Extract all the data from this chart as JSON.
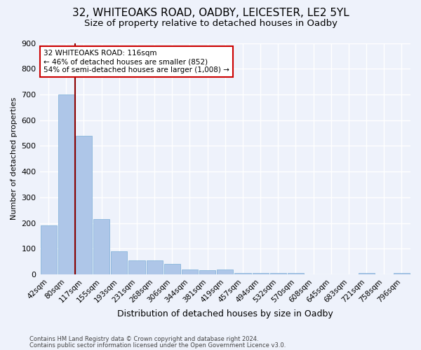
{
  "title1": "32, WHITEOAKS ROAD, OADBY, LEICESTER, LE2 5YL",
  "title2": "Size of property relative to detached houses in Oadby",
  "xlabel": "Distribution of detached houses by size in Oadby",
  "ylabel": "Number of detached properties",
  "categories": [
    "42sqm",
    "80sqm",
    "117sqm",
    "155sqm",
    "193sqm",
    "231sqm",
    "268sqm",
    "306sqm",
    "344sqm",
    "381sqm",
    "419sqm",
    "457sqm",
    "494sqm",
    "532sqm",
    "570sqm",
    "608sqm",
    "645sqm",
    "683sqm",
    "721sqm",
    "758sqm",
    "796sqm"
  ],
  "values": [
    190,
    700,
    540,
    215,
    90,
    55,
    55,
    40,
    20,
    15,
    20,
    5,
    5,
    5,
    5,
    0,
    0,
    0,
    5,
    0,
    5
  ],
  "bar_color": "#aec6e8",
  "bar_edge_color": "#7aaed6",
  "vline_color": "#8b0000",
  "annotation_text": "32 WHITEOAKS ROAD: 116sqm\n← 46% of detached houses are smaller (852)\n54% of semi-detached houses are larger (1,008) →",
  "annotation_box_color": "white",
  "annotation_box_edge": "#cc0000",
  "ylim": [
    0,
    900
  ],
  "yticks": [
    0,
    100,
    200,
    300,
    400,
    500,
    600,
    700,
    800,
    900
  ],
  "footer1": "Contains HM Land Registry data © Crown copyright and database right 2024.",
  "footer2": "Contains public sector information licensed under the Open Government Licence v3.0.",
  "bg_color": "#eef2fb",
  "grid_color": "white",
  "title1_fontsize": 11,
  "title2_fontsize": 9.5
}
